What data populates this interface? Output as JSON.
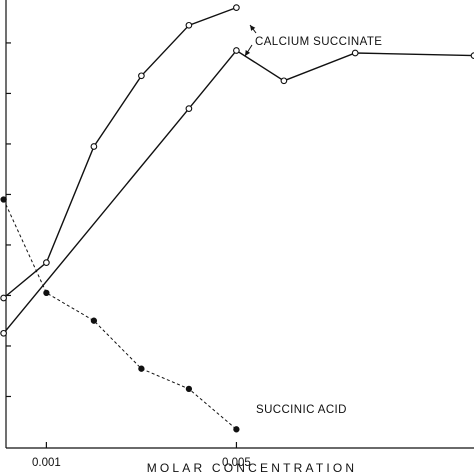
{
  "chart_data": {
    "type": "line",
    "title": "",
    "xlabel": "MOLAR CONCENTRATION",
    "ylabel": "",
    "x_tick_labels": [
      {
        "value": 0.001,
        "label": "0.001"
      },
      {
        "value": 0.005,
        "label": "0.005"
      }
    ],
    "xlim": [
      0.00015,
      0.01
    ],
    "ylim": [
      -0.02,
      8.85
    ],
    "y_ticks": [
      1,
      2,
      3,
      4,
      5,
      6,
      7,
      8
    ],
    "series": [
      {
        "name": "CALCIUM SUCCINATE",
        "style": "solid",
        "marker": "open-circle",
        "x": [
          0.0001,
          0.001,
          0.002,
          0.003,
          0.004,
          0.005
        ],
        "y": [
          2.95,
          3.65,
          5.95,
          7.35,
          8.35,
          8.7
        ]
      },
      {
        "name": "CALCIUM SUCCINATE",
        "style": "solid",
        "marker": "open-circle",
        "x": [
          0.0001,
          0.004,
          0.005,
          0.006,
          0.0075,
          0.01
        ],
        "y": [
          2.25,
          6.7,
          7.85,
          7.25,
          7.8,
          7.75
        ]
      },
      {
        "name": "SUCCINIC ACID",
        "style": "dashed",
        "marker": "filled-circle",
        "x": [
          0.0001,
          0.001,
          0.002,
          0.003,
          0.004,
          0.005
        ],
        "y": [
          4.9,
          3.05,
          2.5,
          1.55,
          1.15,
          0.35
        ]
      }
    ],
    "annotations": [
      {
        "text": "CALCIUM SUCCINATE",
        "points_to_series": [
          0,
          1
        ]
      },
      {
        "text": "SUCCINIC ACID",
        "points_to_series": [
          2
        ]
      }
    ],
    "grid": false,
    "legend": "none"
  }
}
